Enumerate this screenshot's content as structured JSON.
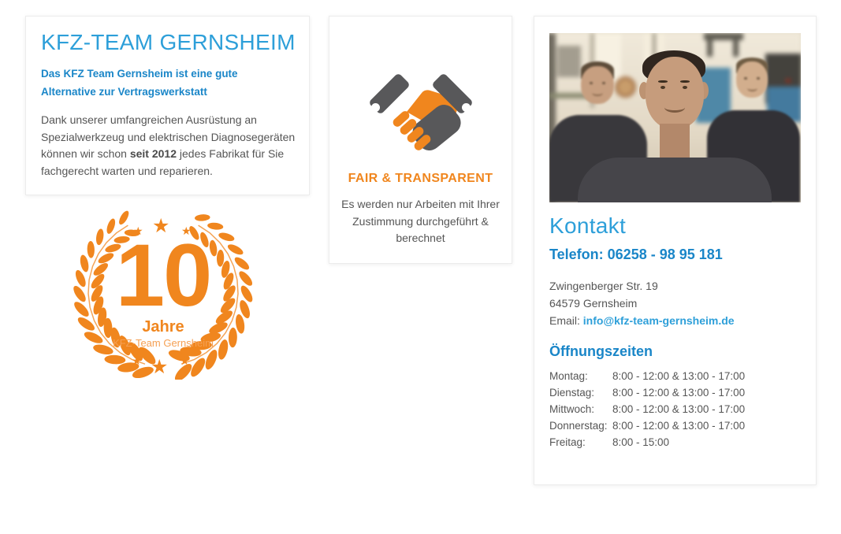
{
  "colors": {
    "accent_blue": "#1a86c8",
    "accent_blue_light": "#2d9fd9",
    "accent_orange": "#f0861e",
    "body_text": "#555555"
  },
  "intro_card": {
    "title": "KFZ-TEAM GERNSHEIM",
    "subtitle": "Das KFZ Team Gernsheim ist eine gute Alternative zur Vertragswerkstatt",
    "body_before": "Dank unserer umfangreichen Ausrüstung an Spezial­werkzeug und elektrischen Diagnosegeräten können wir schon ",
    "body_bold": "seit 2012",
    "body_after": " jedes Fabrikat für Sie fachgerecht warten und reparieren."
  },
  "badge": {
    "icon": "laurel-wreath-icon",
    "star_glyph": "★",
    "number": "10",
    "label": "Jahre",
    "sublabel": "KFZ-Team Gernsheim"
  },
  "fair_card": {
    "icon": "handshake-icon",
    "heading": "FAIR & TRANSPARENT",
    "body": "Es werden nur Arbeiten mit Ih­rer Zustimmung durchgeführt & berechnet"
  },
  "contact_card": {
    "photo": "team-photo",
    "heading": "Kontakt",
    "phone_line": "Telefon: 06258 - 98 95 181",
    "address_line1": "Zwingenberger Str. 19",
    "address_line2": "64579 Gernsheim",
    "email_label": "Email: ",
    "email_link": "info@kfz-team-gernsheim.de",
    "hours_heading": "Öffnungszeiten",
    "hours": [
      {
        "day": "Montag:",
        "time": "8:00 - 12:00 & 13:00 - 17:00"
      },
      {
        "day": "Dienstag:",
        "time": "8:00 - 12:00 & 13:00 - 17:00"
      },
      {
        "day": "Mittwoch:",
        "time": "8:00 - 12:00 & 13:00 - 17:00"
      },
      {
        "day": "Donnerstag:",
        "time": "8:00 - 12:00 & 13:00 - 17:00"
      },
      {
        "day": "Freitag:",
        "time": "8:00 - 15:00"
      }
    ]
  }
}
